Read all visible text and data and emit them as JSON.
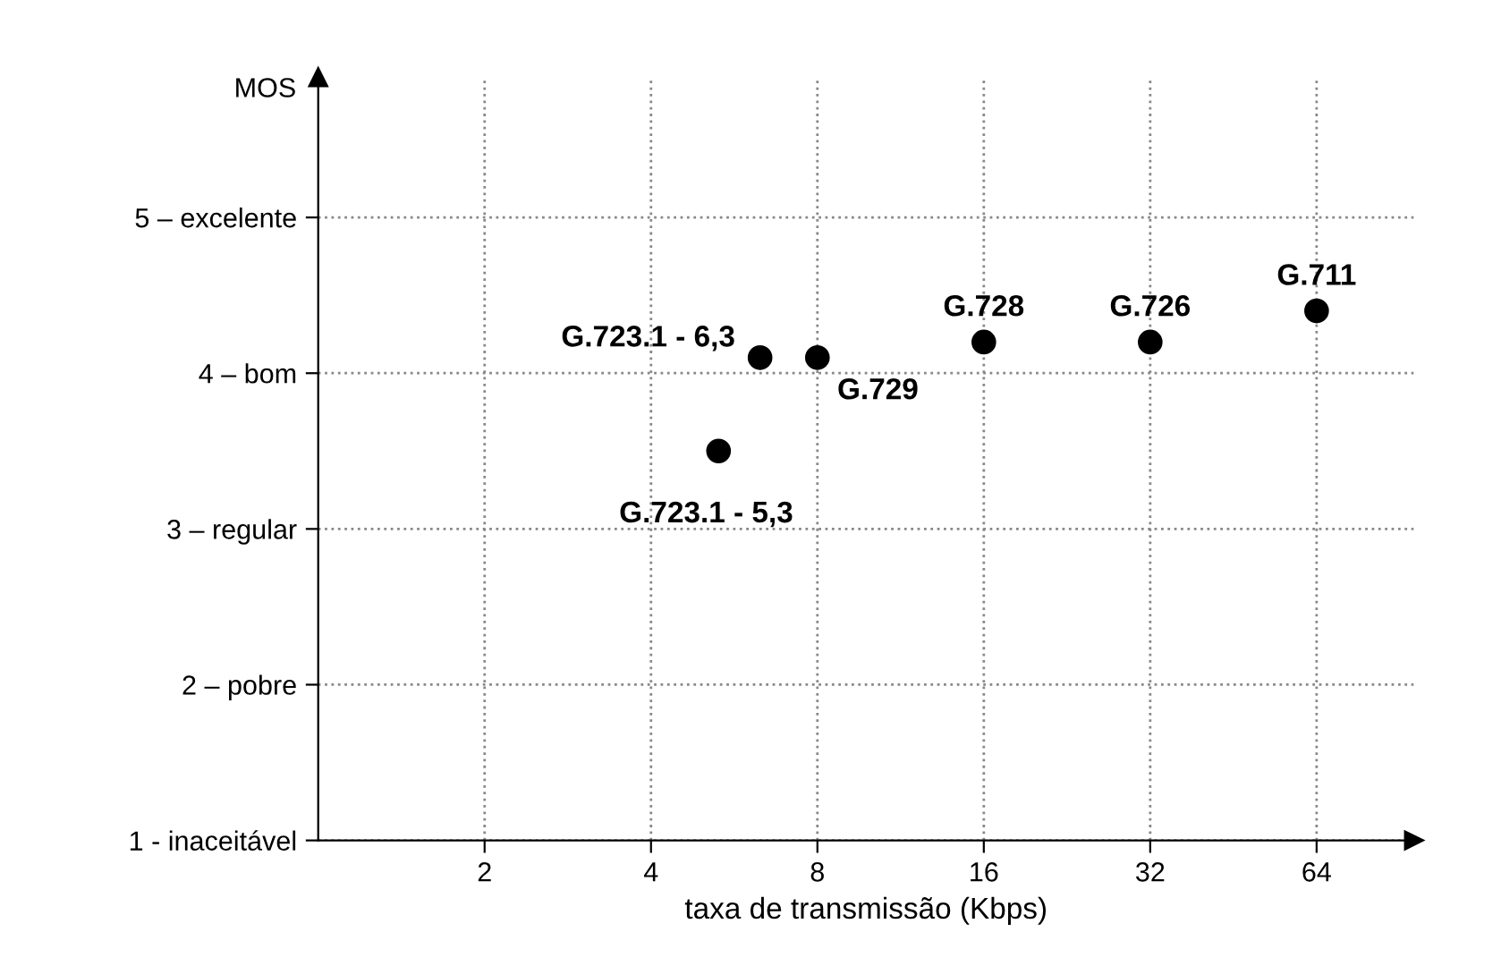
{
  "chart_data": {
    "type": "scatter",
    "xlabel": "taxa de transmissão (Kbps)",
    "ylabel": "MOS",
    "log": "x",
    "xlim": [
      1,
      96
    ],
    "xticks": [
      2,
      4,
      8,
      16,
      32,
      64
    ],
    "ylim": [
      1,
      5.9
    ],
    "yticks": [
      {
        "value": 1,
        "label": "1 - inaceitável"
      },
      {
        "value": 2,
        "label": "2 – pobre"
      },
      {
        "value": 3,
        "label": "3 – regular"
      },
      {
        "value": 4,
        "label": "4 – bom"
      },
      {
        "value": 5,
        "label": "5 – excelente"
      }
    ],
    "grid": true,
    "marker": "circle",
    "series": [
      {
        "color": "#000000",
        "x": [
          5.3,
          6.3,
          8,
          16,
          32,
          64
        ],
        "values": [
          3.5,
          4.1,
          4.1,
          4.2,
          4.2,
          4.4
        ]
      }
    ],
    "annotations": [
      {
        "text": "G.723.1 - 5,3",
        "x": 5.3,
        "y": 3.5
      },
      {
        "text": "G.723.1 - 6,3",
        "x": 6.3,
        "y": 4.1
      },
      {
        "text": "G.729",
        "x": 8,
        "y": 4.1
      },
      {
        "text": "G.728",
        "x": 16,
        "y": 4.2
      },
      {
        "text": "G.726",
        "x": 32,
        "y": 4.2
      },
      {
        "text": "G.711",
        "x": 64,
        "y": 4.4
      }
    ]
  }
}
